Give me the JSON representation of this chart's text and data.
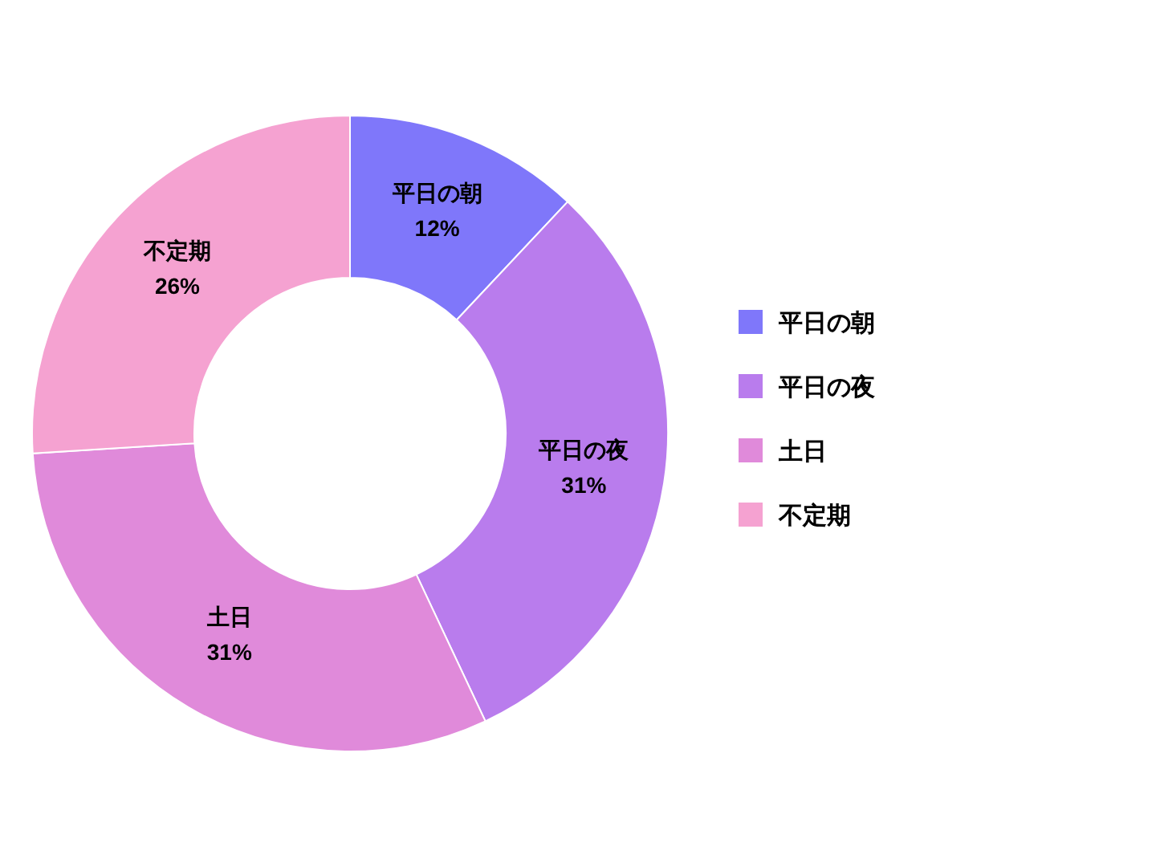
{
  "chart_data": {
    "type": "donut",
    "categories": [
      "平日の朝",
      "平日の夜",
      "土日",
      "不定期"
    ],
    "values": [
      12,
      31,
      31,
      26
    ],
    "colors": [
      "#7f77fa",
      "#b97ced",
      "#e08ada",
      "#f5a2d1"
    ],
    "value_labels": [
      "12%",
      "31%",
      "31%",
      "26%"
    ],
    "legend": "right"
  }
}
